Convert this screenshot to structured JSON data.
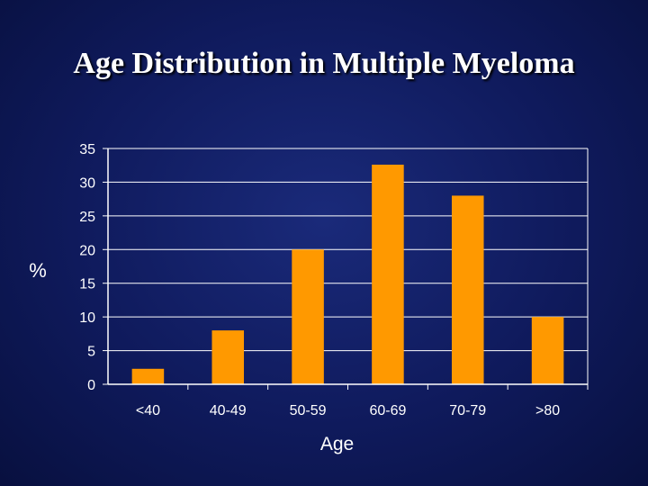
{
  "chart_data": {
    "type": "bar",
    "title": "Age Distribution in Multiple Myeloma",
    "xlabel": "Age",
    "ylabel": "%",
    "categories": [
      "<40",
      "40-49",
      "50-59",
      "60-69",
      "70-79",
      ">80"
    ],
    "values": [
      2.3,
      8,
      20,
      32.6,
      28,
      10
    ],
    "ylim": [
      0,
      35
    ],
    "yticks": [
      0,
      5,
      10,
      15,
      20,
      25,
      30,
      35
    ],
    "grid": true,
    "legend": "none",
    "colors": {
      "bar": "#ff9900",
      "grid": "#ffffff",
      "text": "#ffffff",
      "background": "#0f1a5c"
    }
  }
}
